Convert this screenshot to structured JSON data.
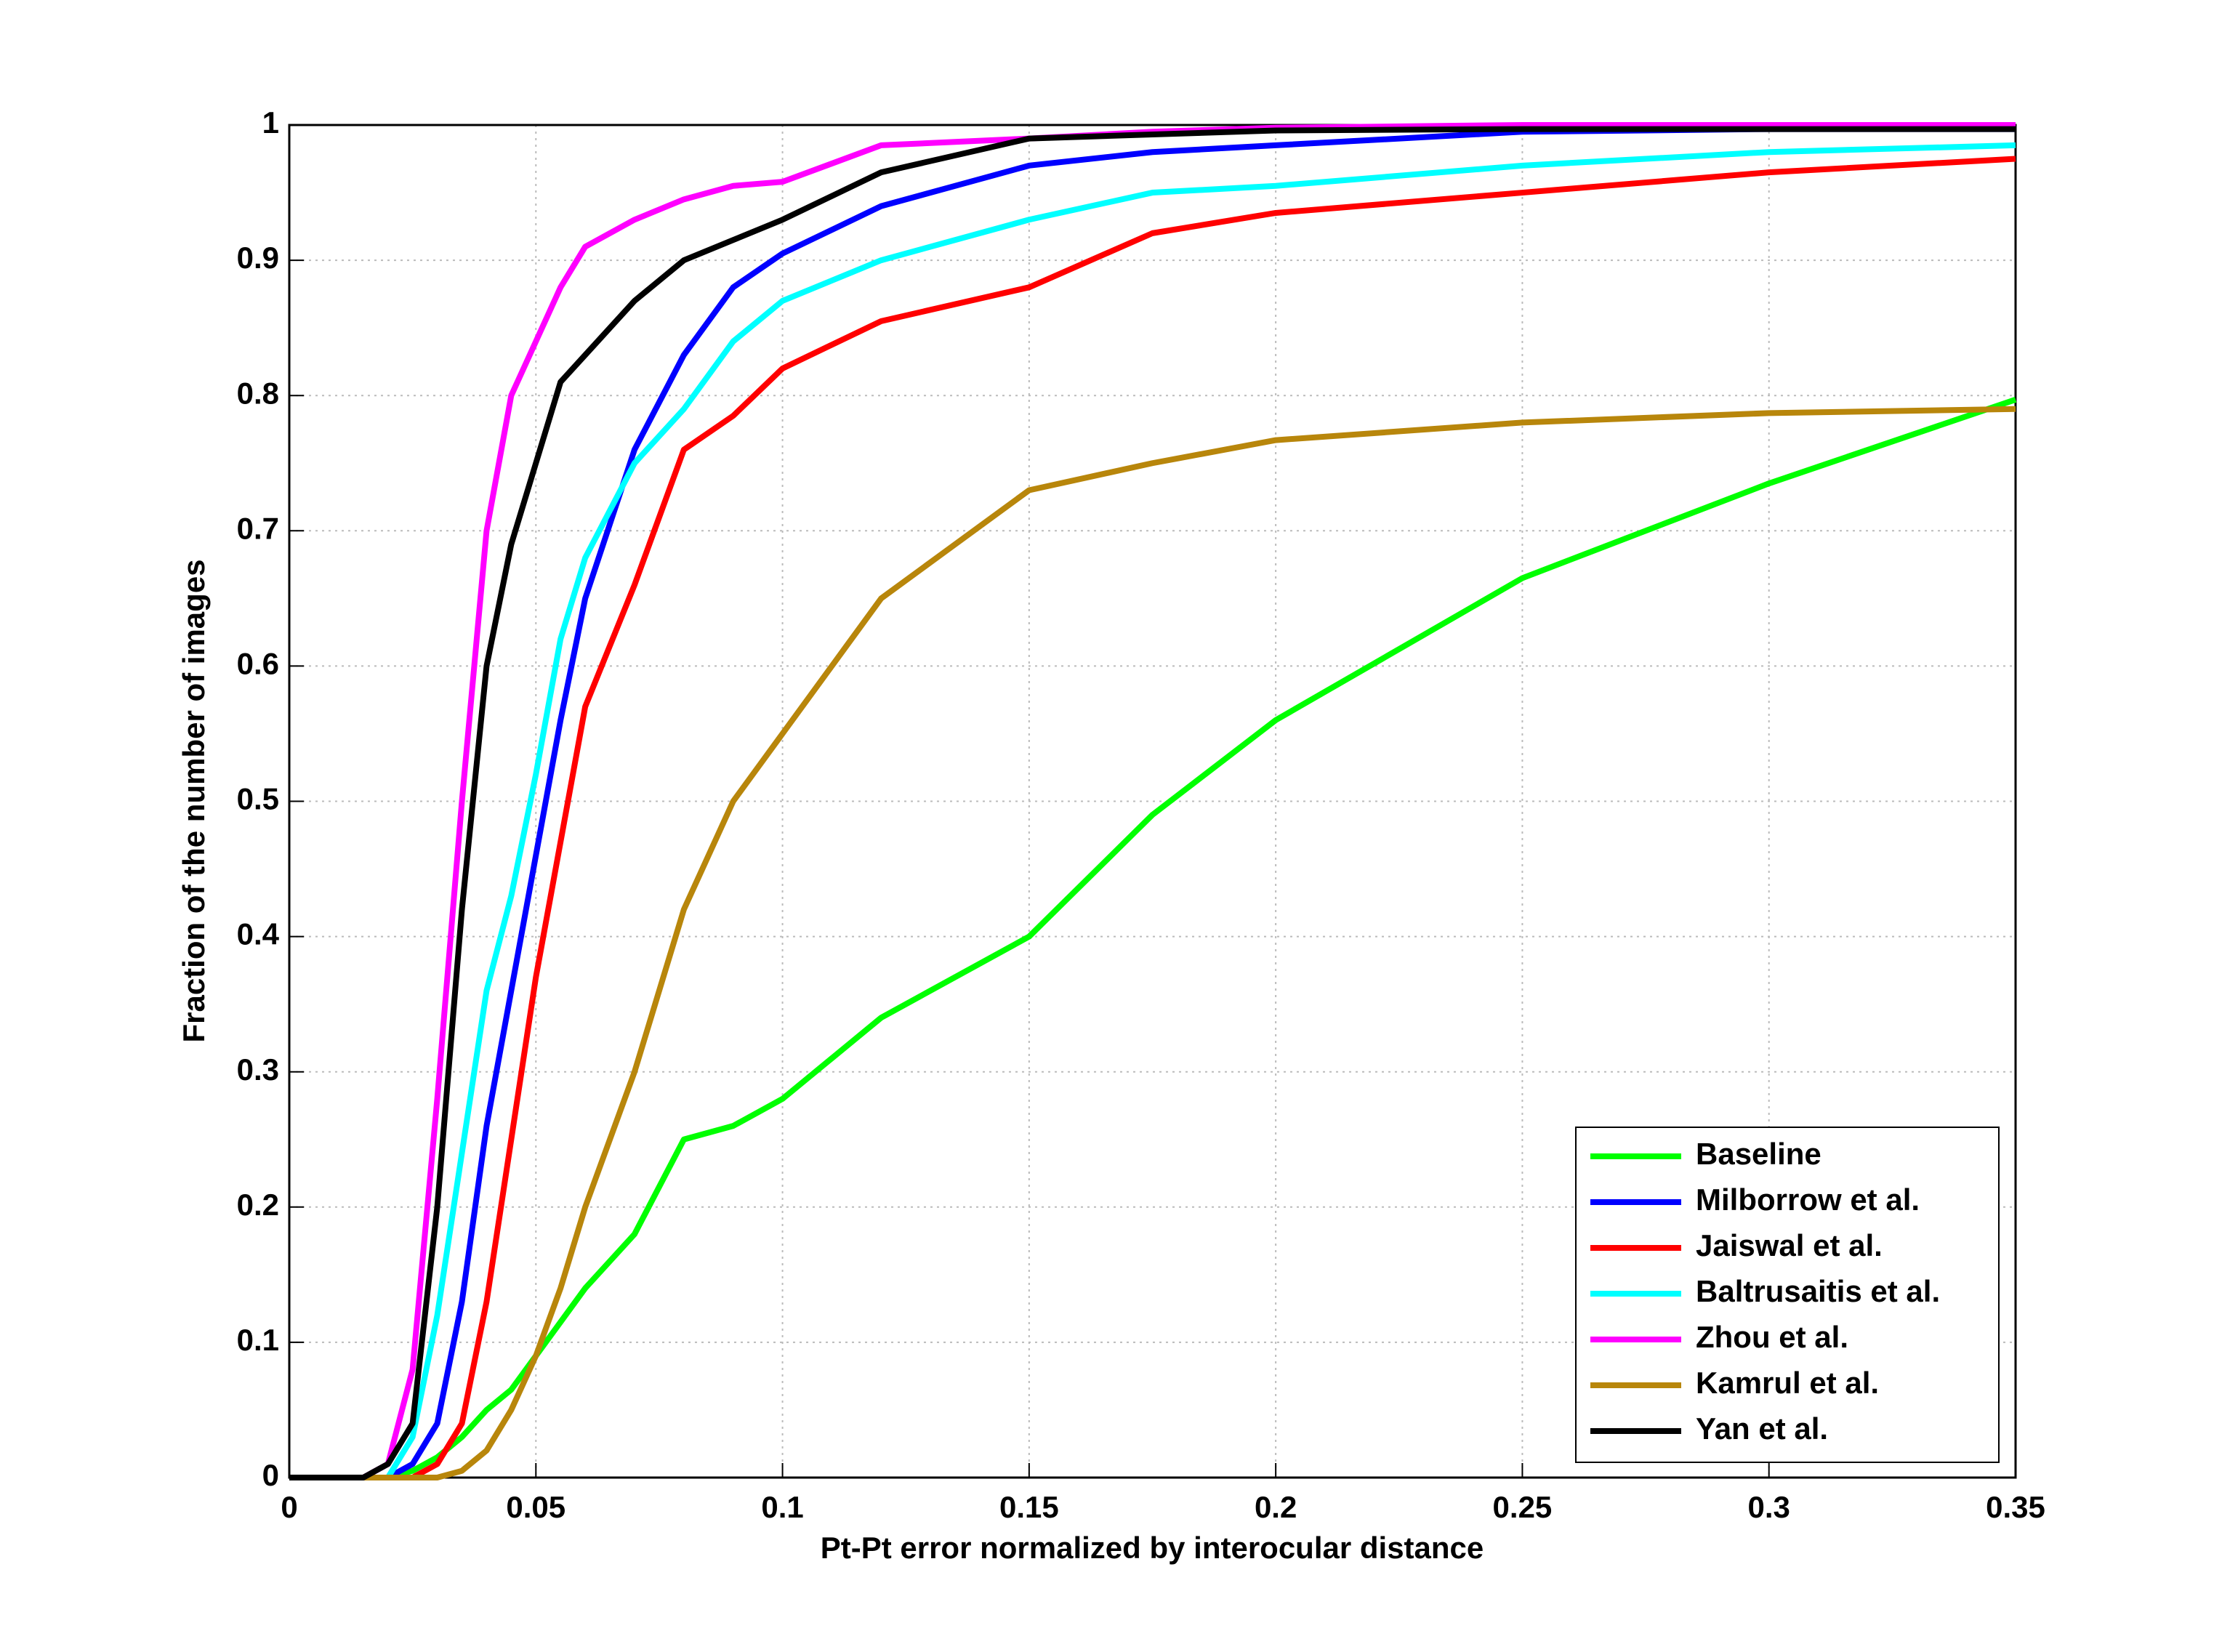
{
  "chart_data": {
    "type": "line",
    "xlabel": "Pt-Pt error normalized by interocular distance",
    "ylabel": "Fraction of the number of images",
    "x": [
      0,
      0.015,
      0.02,
      0.025,
      0.03,
      0.035,
      0.04,
      0.045,
      0.05,
      0.055,
      0.06,
      0.07,
      0.08,
      0.09,
      0.1,
      0.12,
      0.15,
      0.175,
      0.2,
      0.25,
      0.3,
      0.35
    ],
    "series": [
      {
        "name": "Baseline",
        "color": "#00ff00",
        "values": [
          0,
          0,
          0,
          0.005,
          0.015,
          0.03,
          0.05,
          0.065,
          0.09,
          0.115,
          0.14,
          0.18,
          0.25,
          0.26,
          0.28,
          0.34,
          0.4,
          0.49,
          0.56,
          0.665,
          0.735,
          0.797
        ]
      },
      {
        "name": "Milborrow et al.",
        "color": "#0000ff",
        "values": [
          0,
          0,
          0,
          0.01,
          0.04,
          0.13,
          0.26,
          0.36,
          0.46,
          0.56,
          0.65,
          0.76,
          0.83,
          0.88,
          0.905,
          0.94,
          0.97,
          0.98,
          0.985,
          0.995,
          0.997,
          0.997
        ]
      },
      {
        "name": "Jaiswal et al.",
        "color": "#ff0000",
        "values": [
          0,
          0,
          0,
          0,
          0.01,
          0.04,
          0.13,
          0.25,
          0.37,
          0.47,
          0.57,
          0.66,
          0.76,
          0.785,
          0.82,
          0.855,
          0.88,
          0.92,
          0.935,
          0.95,
          0.965,
          0.975
        ]
      },
      {
        "name": "Baltrusaitis et al.",
        "color": "#00ffff",
        "values": [
          0,
          0,
          0,
          0.03,
          0.12,
          0.24,
          0.36,
          0.43,
          0.52,
          0.62,
          0.68,
          0.75,
          0.79,
          0.84,
          0.87,
          0.9,
          0.93,
          0.95,
          0.955,
          0.97,
          0.98,
          0.985
        ]
      },
      {
        "name": "Zhou et al.",
        "color": "#ff00ff",
        "values": [
          0,
          0,
          0.01,
          0.08,
          0.28,
          0.5,
          0.7,
          0.8,
          0.84,
          0.88,
          0.91,
          0.93,
          0.945,
          0.955,
          0.958,
          0.985,
          0.99,
          0.995,
          0.998,
          1,
          1,
          1
        ]
      },
      {
        "name": "Kamrul et al.",
        "color": "#b8860b",
        "values": [
          0,
          0,
          0,
          0,
          0,
          0.005,
          0.02,
          0.05,
          0.09,
          0.14,
          0.2,
          0.3,
          0.42,
          0.5,
          0.55,
          0.65,
          0.73,
          0.75,
          0.767,
          0.78,
          0.787,
          0.79
        ]
      },
      {
        "name": "Yan et al.",
        "color": "#000000",
        "values": [
          0,
          0,
          0.01,
          0.04,
          0.2,
          0.42,
          0.6,
          0.69,
          0.75,
          0.81,
          0.83,
          0.87,
          0.9,
          0.915,
          0.93,
          0.965,
          0.99,
          0.993,
          0.996,
          0.997,
          0.997,
          0.997
        ]
      }
    ],
    "xlim": [
      0,
      0.35
    ],
    "xticks": [
      0,
      0.05,
      0.1,
      0.15,
      0.2,
      0.25,
      0.3,
      0.35
    ],
    "ylim": [
      0,
      1
    ],
    "yticks": [
      0,
      0.1,
      0.2,
      0.3,
      0.4,
      0.5,
      0.6,
      0.7,
      0.8,
      0.9,
      1
    ],
    "grid": true,
    "legend": "lower right"
  }
}
